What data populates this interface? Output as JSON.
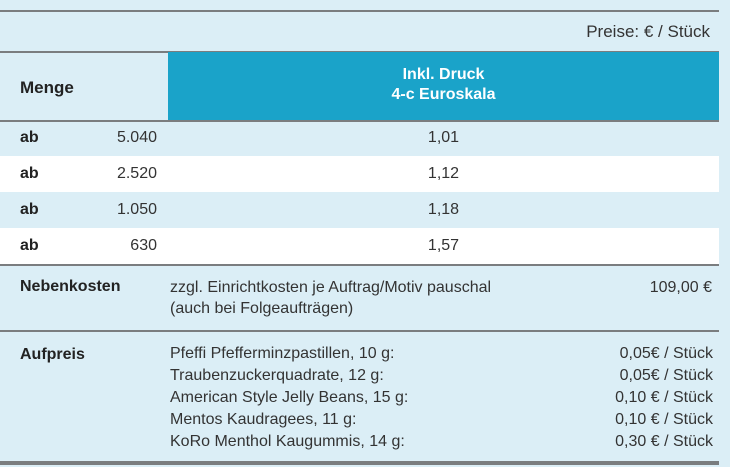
{
  "price_note": "Preise: € / Stück",
  "header": {
    "quantity_label": "Menge",
    "print_line1": "Inkl. Druck",
    "print_line2": "4-c Euroskala"
  },
  "rows": [
    {
      "prefix": "ab",
      "quantity": "5.040",
      "price": "1,01"
    },
    {
      "prefix": "ab",
      "quantity": "2.520",
      "price": "1,12"
    },
    {
      "prefix": "ab",
      "quantity": "1.050",
      "price": "1,18"
    },
    {
      "prefix": "ab",
      "quantity": "630",
      "price": "1,57"
    }
  ],
  "extra_costs": {
    "label": "Nebenkosten",
    "line1": "zzgl. Einrichtkosten je Auftrag/Motiv pauschal",
    "line2": "(auch bei Folgeaufträgen)",
    "amount": "109,00 €"
  },
  "surcharge": {
    "label": "Aufpreis",
    "items": [
      {
        "name": "Pfeffi Pfefferminzpastillen, 10 g:",
        "cost": "0,05€ / Stück"
      },
      {
        "name": "Traubenzuckerquadrate, 12 g:",
        "cost": "0,05€ / Stück"
      },
      {
        "name": "American Style Jelly Beans, 15 g:",
        "cost": "0,10 € / Stück"
      },
      {
        "name": "Mentos Kaudragees, 11 g:",
        "cost": "0,10 € / Stück"
      },
      {
        "name": "KoRo Menthol Kaugummis, 14 g:",
        "cost": "0,30 € / Stück"
      }
    ]
  }
}
